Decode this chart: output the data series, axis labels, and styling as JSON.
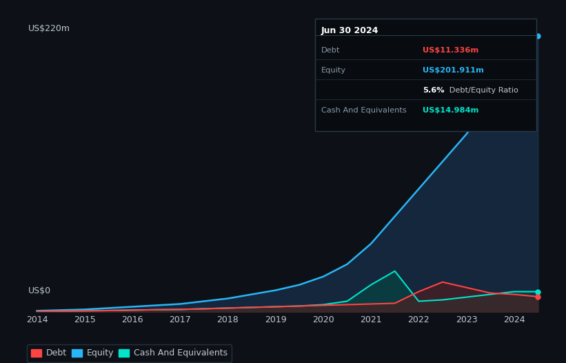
{
  "background_color": "#0d1117",
  "plot_bg_color": "#0d1117",
  "grid_color": "#1e2a3a",
  "title_date": "Jun 30 2024",
  "ylabel_top": "US$220m",
  "ylabel_bottom": "US$0",
  "ylim": [
    0,
    220
  ],
  "years": [
    2014,
    2014.5,
    2015,
    2015.5,
    2016,
    2016.5,
    2017,
    2017.5,
    2018,
    2018.5,
    2019,
    2019.5,
    2020,
    2020.5,
    2021,
    2021.5,
    2022,
    2022.5,
    2023,
    2023.5,
    2024,
    2024.5
  ],
  "equity": [
    1,
    1.5,
    2,
    3,
    4,
    5,
    6,
    8,
    10,
    13,
    16,
    20,
    26,
    35,
    50,
    70,
    90,
    110,
    130,
    155,
    185,
    202
  ],
  "debt": [
    0.5,
    0.8,
    1.0,
    1.2,
    1.5,
    1.8,
    2.0,
    2.5,
    3.0,
    3.5,
    4.0,
    4.5,
    5.0,
    5.5,
    6.0,
    6.5,
    15,
    22,
    18,
    14,
    13,
    11.3
  ],
  "cash": [
    0.5,
    0.8,
    1.0,
    1.2,
    1.5,
    1.8,
    2.0,
    2.5,
    3.0,
    3.5,
    4.0,
    4.5,
    5.5,
    8,
    20,
    30,
    8,
    9,
    11,
    13,
    15,
    15
  ],
  "equity_color": "#29b6f6",
  "equity_fill": "#1a3a5c",
  "debt_color": "#ff4444",
  "debt_fill": "#5c1a1a",
  "cash_color": "#00e5cc",
  "cash_fill": "#004d44",
  "legend_items": [
    {
      "label": "Debt",
      "color": "#ff4444"
    },
    {
      "label": "Equity",
      "color": "#29b6f6"
    },
    {
      "label": "Cash And Equivalents",
      "color": "#00e5cc"
    }
  ],
  "xticks": [
    2014,
    2015,
    2016,
    2017,
    2018,
    2019,
    2020,
    2021,
    2022,
    2023,
    2024
  ],
  "xtick_labels": [
    "2014",
    "2015",
    "2016",
    "2017",
    "2018",
    "2019",
    "2020",
    "2021",
    "2022",
    "2023",
    "2024"
  ],
  "text_color": "#c0c8d0",
  "label_color": "#8898aa"
}
